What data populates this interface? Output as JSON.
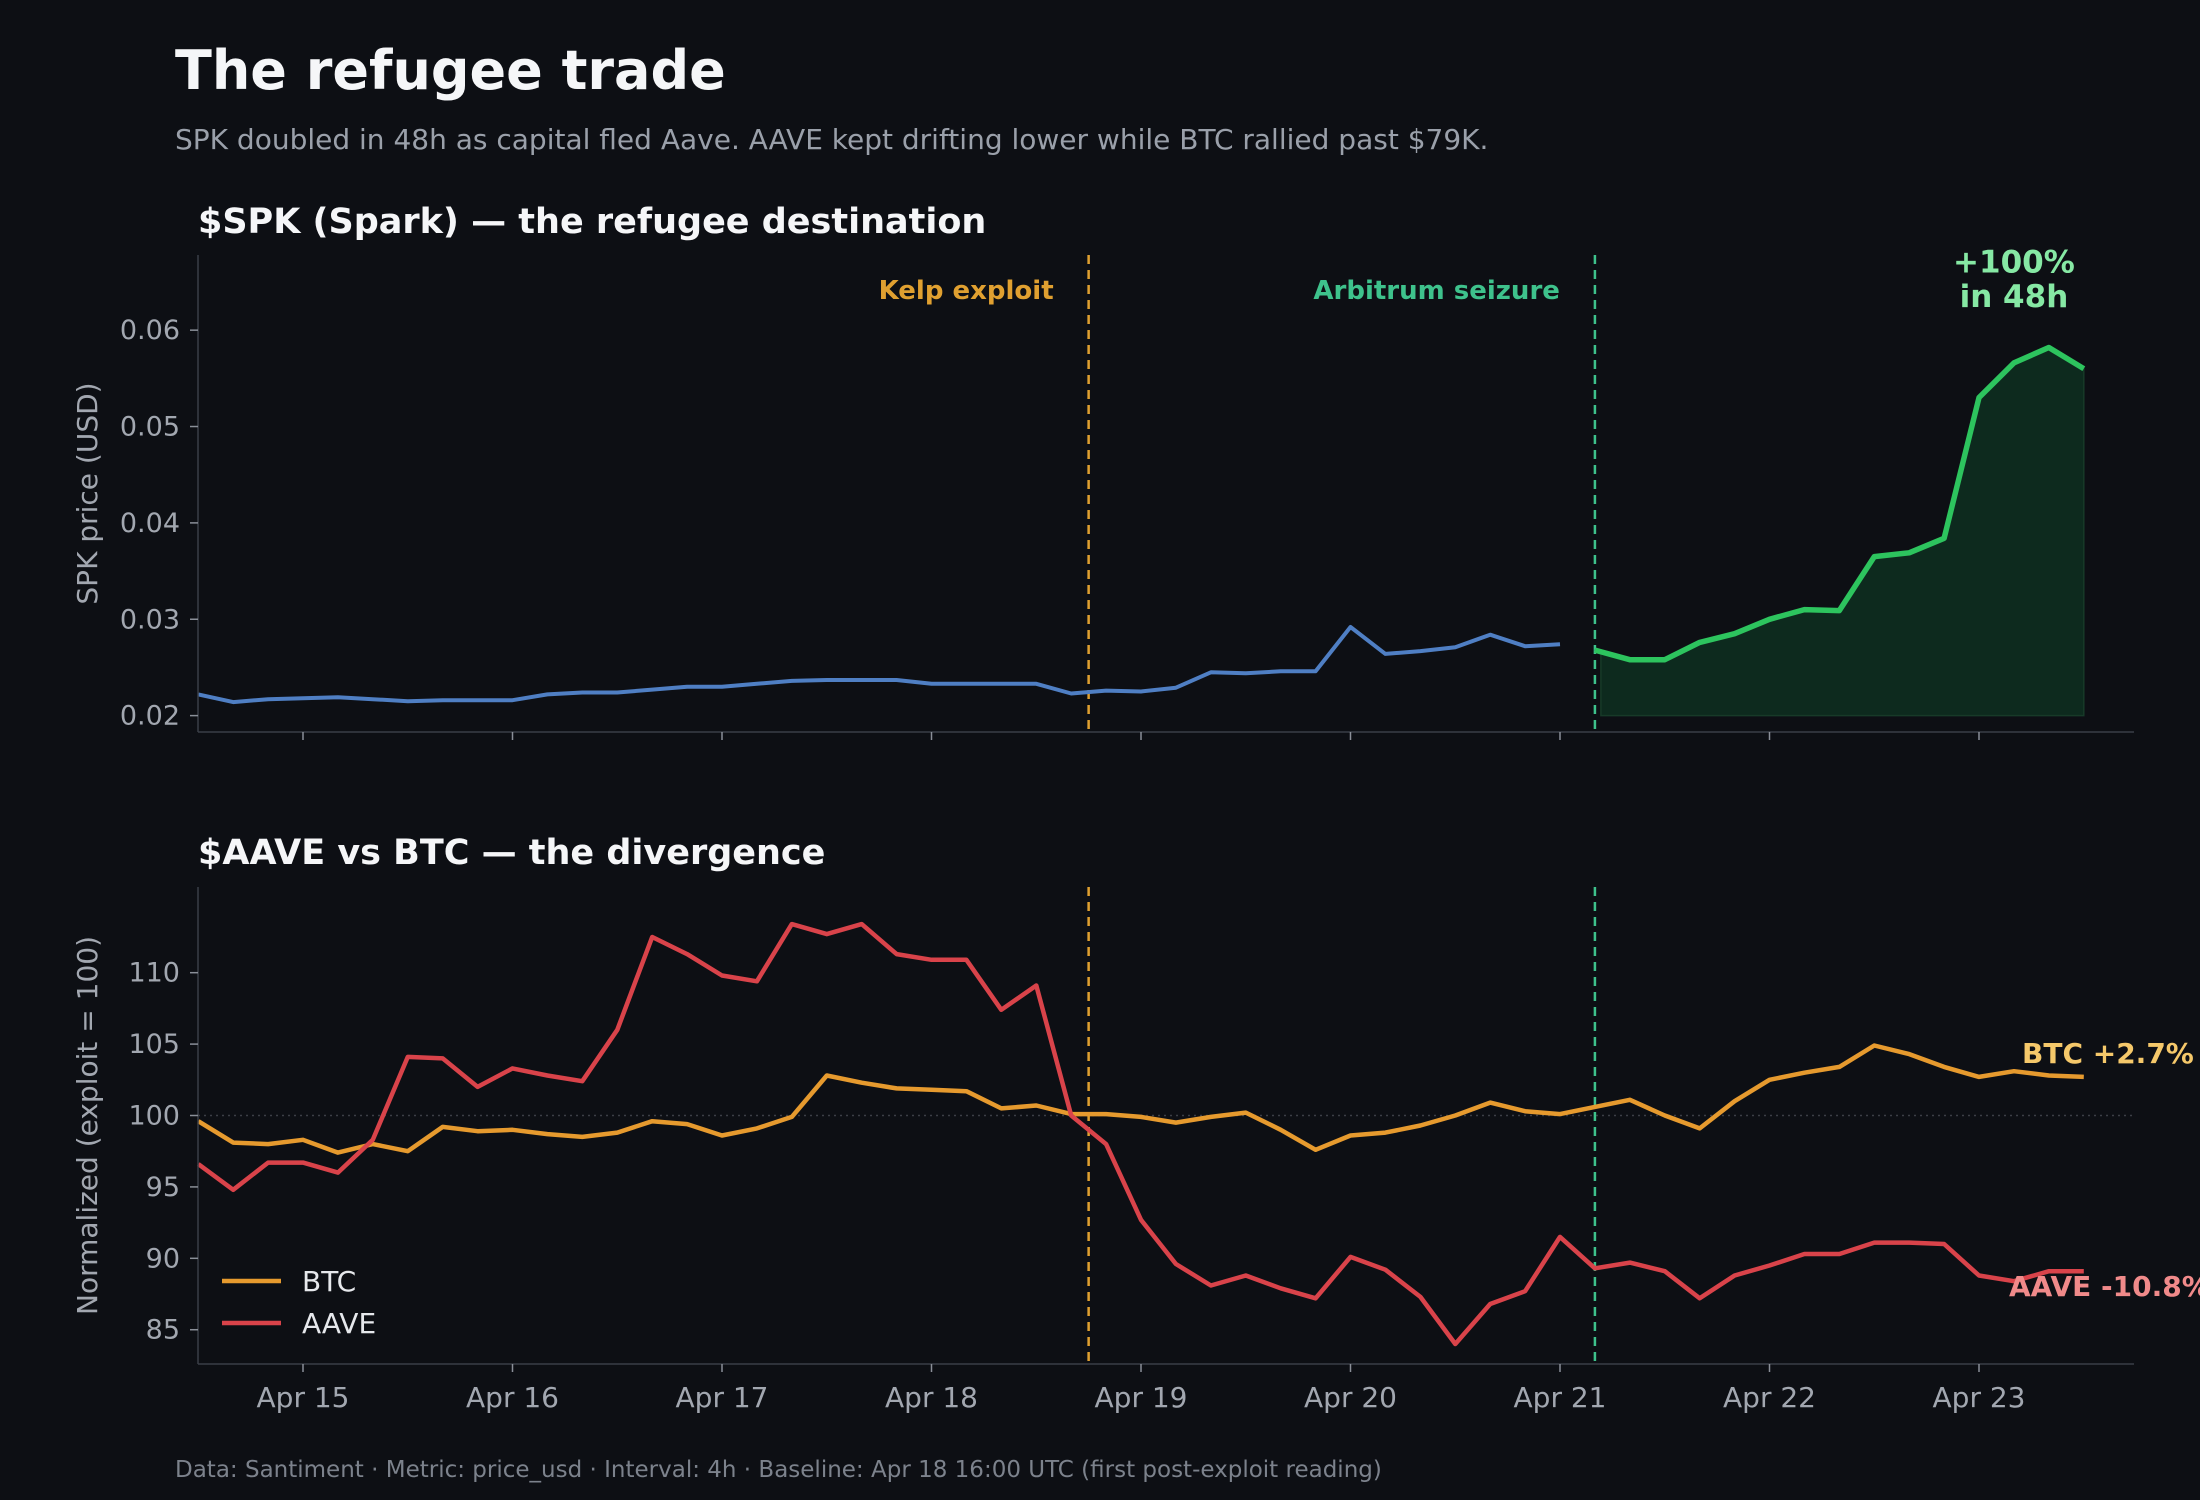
{
  "title": "The refugee trade",
  "subtitle": "SPK doubled in 48h as capital fled Aave. AAVE kept drifting lower while BTC rallied past $79K.",
  "footer": "Data: Santiment  ·  Metric: price_usd  ·  Interval: 4h  ·  Baseline: Apr 18 16:00 UTC (first post-exploit reading)",
  "colors": {
    "background": "#0d0f14",
    "spk_pre": "#4f7fc4",
    "spk_post": "#2dc45e",
    "spk_fill": "#0d2a1e",
    "btc": "#e69a2e",
    "aave": "#d9434a",
    "kelp": "#e0a030",
    "arbitrum": "#3ec28c",
    "spk_gain_text": "#86e8a4",
    "btc_end_text": "#f5c86a",
    "aave_end_text": "#f08a8a"
  },
  "chart_data": [
    {
      "type": "line",
      "title": "$SPK (Spark) — the refugee destination",
      "ylabel": "SPK price (USD)",
      "xlabel": "",
      "ylim": [
        0.0183,
        0.0678
      ],
      "yticks": [
        0.02,
        0.03,
        0.04,
        0.05,
        0.06
      ],
      "ytick_labels": [
        "0.02",
        "0.03",
        "0.04",
        "0.05",
        "0.06"
      ],
      "grid": false,
      "x_interval_days": 0.16667,
      "series": [
        {
          "x_start": "Apr 14 12:00",
          "values": [
            0.0222,
            0.0214,
            0.0217,
            0.0218,
            0.0219,
            0.0217,
            0.0215,
            0.0216,
            0.0216,
            0.0216,
            0.0222,
            0.0224,
            0.0224,
            0.0227,
            0.023,
            0.023,
            0.0233,
            0.0236,
            0.0237,
            0.0237,
            0.0237,
            0.0233,
            0.0233,
            0.0233,
            0.0233,
            0.0223,
            0.0226,
            0.0225,
            0.0229,
            0.0245,
            0.0244,
            0.0246,
            0.0246,
            0.0292,
            0.0264,
            0.0267,
            0.0271,
            0.0284,
            0.0272,
            0.0274
          ]
        },
        {
          "x_start": "Apr 21 04:00",
          "values": [
            0.0268,
            0.0258,
            0.0258,
            0.0276,
            0.0285,
            0.03,
            0.031,
            0.0309,
            0.0365,
            0.0369,
            0.0384,
            0.053,
            0.0566,
            0.0582,
            0.056
          ]
        }
      ],
      "events": [
        {
          "label": "Kelp exploit",
          "x": "Apr 18 18:00"
        },
        {
          "label": "Arbitrum seizure",
          "x": "Apr 21 04:00"
        }
      ],
      "annotations": [
        {
          "text": "+100%",
          "x": "Apr 23 04:00",
          "y": 0.066
        },
        {
          "text": "in 48h",
          "x": "Apr 23 04:00",
          "y": 0.0624
        }
      ]
    },
    {
      "type": "line",
      "title": "$AAVE vs BTC — the divergence",
      "ylabel": "Normalized (exploit = 100)",
      "xlabel": "",
      "ylim": [
        82.6,
        116
      ],
      "yticks": [
        85,
        90,
        95,
        100,
        105,
        110
      ],
      "ytick_labels": [
        "85",
        "90",
        "95",
        "100",
        "105",
        "110"
      ],
      "reference_line": 100,
      "grid": false,
      "legend_position": "lower-left",
      "x_start": "Apr 14 12:00",
      "x_interval_days": 0.16667,
      "x_ticks": [
        "Apr 15",
        "Apr 16",
        "Apr 17",
        "Apr 18",
        "Apr 19",
        "Apr 20",
        "Apr 21",
        "Apr 22",
        "Apr 23"
      ],
      "events": [
        {
          "label": "Kelp exploit",
          "x": "Apr 18 18:00"
        },
        {
          "label": "Arbitrum seizure",
          "x": "Apr 21 04:00"
        }
      ],
      "series": [
        {
          "name": "BTC",
          "end_label": "BTC +2.7%",
          "values": [
            99.6,
            98.1,
            98.0,
            98.3,
            97.4,
            98.0,
            97.5,
            99.2,
            98.9,
            99.0,
            98.7,
            98.5,
            98.8,
            99.6,
            99.4,
            98.6,
            99.1,
            99.9,
            102.8,
            102.3,
            101.9,
            101.8,
            101.7,
            100.5,
            100.7,
            100.1,
            100.1,
            99.9,
            99.5,
            99.9,
            100.2,
            99.0,
            97.6,
            98.6,
            98.8,
            99.3,
            100.0,
            100.9,
            100.3,
            100.1,
            100.6,
            101.1,
            100.0,
            99.1,
            101.0,
            102.5,
            103.0,
            103.4,
            104.9,
            104.3,
            103.4,
            102.7,
            103.1,
            102.8,
            102.7
          ]
        },
        {
          "name": "AAVE",
          "end_label": "AAVE -10.8%",
          "values": [
            96.6,
            94.8,
            96.7,
            96.7,
            96.0,
            98.3,
            104.1,
            104.0,
            102.0,
            103.3,
            102.8,
            102.4,
            106.0,
            112.5,
            111.3,
            109.8,
            109.4,
            113.4,
            112.7,
            113.4,
            111.3,
            110.9,
            110.9,
            107.4,
            109.1,
            100.0,
            98.0,
            92.7,
            89.6,
            88.1,
            88.8,
            87.9,
            87.2,
            90.1,
            89.2,
            87.3,
            84.0,
            86.8,
            87.7,
            91.5,
            89.3,
            89.7,
            89.1,
            87.2,
            88.8,
            89.5,
            90.3,
            90.3,
            91.1,
            91.1,
            91.0,
            88.8,
            88.4,
            89.1,
            89.1
          ]
        }
      ]
    }
  ]
}
